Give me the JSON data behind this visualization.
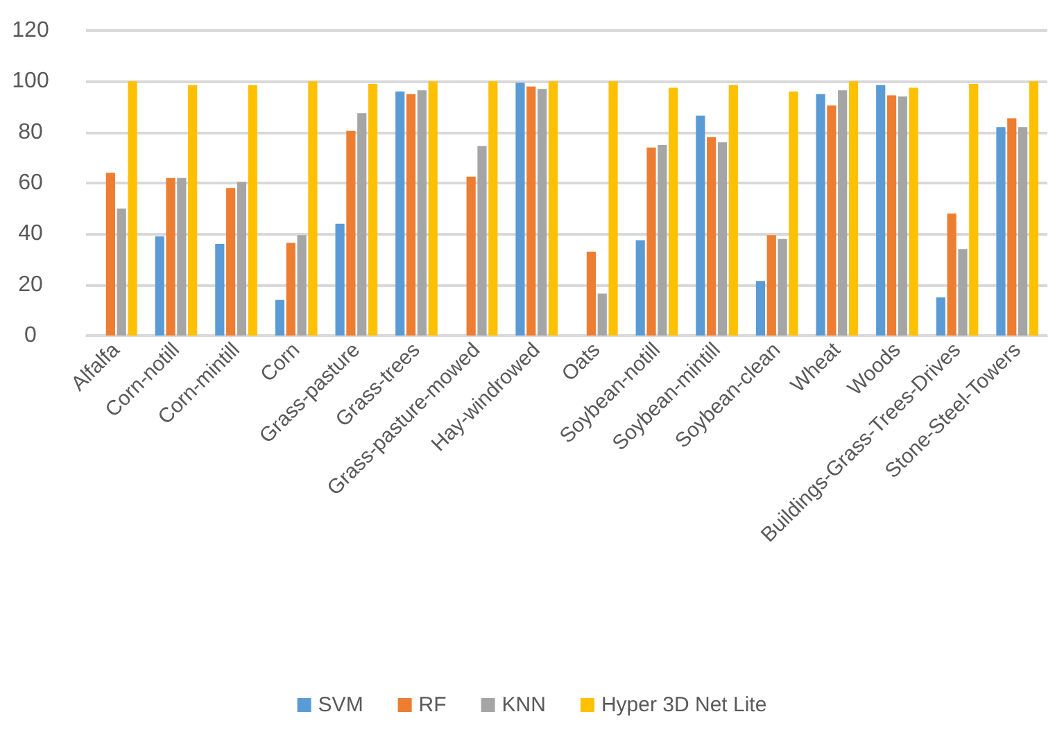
{
  "chart_data": {
    "type": "bar",
    "categories": [
      "Alfalfa",
      "Corn-notill",
      "Corn-mintill",
      "Corn",
      "Grass-pasture",
      "Grass-trees",
      "Grass-pasture-mowed",
      "Hay-windrowed",
      "Oats",
      "Soybean-notill",
      "Soybean-mintill",
      "Soybean-clean",
      "Wheat",
      "Woods",
      "Buildings-Grass-Trees-Drives",
      "Stone-Steel-Towers"
    ],
    "series": [
      {
        "name": "SVM",
        "color": "#5b9bd5",
        "values": [
          null,
          39,
          36,
          14,
          44,
          96,
          null,
          99.5,
          null,
          37.5,
          86.5,
          21.5,
          95,
          98.5,
          15,
          82
        ]
      },
      {
        "name": "RF",
        "color": "#ed7d31",
        "values": [
          64,
          62,
          58,
          36.5,
          80.5,
          95,
          62.5,
          98,
          33,
          74,
          78,
          39.5,
          90.5,
          94.5,
          48,
          85.5
        ]
      },
      {
        "name": "KNN",
        "color": "#a5a5a5",
        "values": [
          50,
          62,
          60.5,
          39.5,
          87.5,
          96.5,
          74.5,
          97,
          16.5,
          75,
          76,
          38,
          96.5,
          94,
          34,
          82
        ]
      },
      {
        "name": "Hyper 3D Net Lite",
        "color": "#ffc000",
        "values": [
          100,
          98.5,
          98.5,
          100,
          99,
          100,
          100,
          100,
          100,
          97.5,
          98.5,
          96,
          100,
          97.5,
          99,
          100
        ]
      }
    ],
    "ylim": [
      0,
      120
    ],
    "yticks": [
      0,
      20,
      40,
      60,
      80,
      100,
      120
    ],
    "grid": "y",
    "legend": "bottom"
  }
}
